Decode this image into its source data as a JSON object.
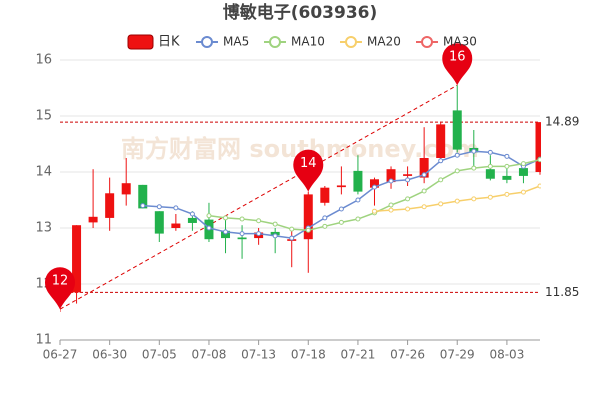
{
  "chart_data": {
    "type": "candlestick",
    "title": "博敏电子(603936)",
    "watermark": "南方财富网 southmoney.com",
    "categories": [
      "06-27",
      null,
      null,
      "06-30",
      null,
      null,
      "07-05",
      null,
      null,
      "07-08",
      null,
      null,
      "07-13",
      null,
      null,
      "07-18",
      null,
      null,
      "07-21",
      null,
      null,
      "07-26",
      null,
      null,
      "07-29",
      null,
      null,
      "08-03",
      null,
      null
    ],
    "candle_name": "日K",
    "up_color": "#ee1111",
    "down_color": "#22b14c",
    "open": [
      11.85,
      11.85,
      13.1,
      13.18,
      13.6,
      13.77,
      13.3,
      13.0,
      13.18,
      13.15,
      12.95,
      12.83,
      12.82,
      12.93,
      12.77,
      12.8,
      13.45,
      13.73,
      14.02,
      13.72,
      13.82,
      13.93,
      13.9,
      14.25,
      15.1,
      14.43,
      14.05,
      13.93,
      14.07,
      14.0
    ],
    "close": [
      12.0,
      13.05,
      13.2,
      13.62,
      13.8,
      13.35,
      12.9,
      13.08,
      13.09,
      12.8,
      12.82,
      12.8,
      12.92,
      12.87,
      12.8,
      13.6,
      13.72,
      13.76,
      13.65,
      13.87,
      14.05,
      13.96,
      14.25,
      14.85,
      14.4,
      14.35,
      13.88,
      13.86,
      13.93,
      14.89
    ],
    "high": [
      12.1,
      13.05,
      14.05,
      13.9,
      14.25,
      13.77,
      13.3,
      13.25,
      13.3,
      13.45,
      13.2,
      13.05,
      13.0,
      13.0,
      12.95,
      13.65,
      13.75,
      14.1,
      14.3,
      13.9,
      14.1,
      14.1,
      14.8,
      14.9,
      15.55,
      14.75,
      14.3,
      14.1,
      14.1,
      14.89
    ],
    "low": [
      11.5,
      11.65,
      13.0,
      12.95,
      13.4,
      13.35,
      12.75,
      12.95,
      12.95,
      12.75,
      12.55,
      12.45,
      12.7,
      12.55,
      12.3,
      12.2,
      13.4,
      13.6,
      13.6,
      13.4,
      13.7,
      13.75,
      13.8,
      14.2,
      14.35,
      14.1,
      13.85,
      13.8,
      13.8,
      13.95
    ],
    "series": [
      {
        "name": "MA5",
        "color": "#6b8bd0",
        "values": [
          null,
          null,
          null,
          null,
          null,
          13.4,
          13.38,
          13.36,
          13.25,
          13.0,
          12.93,
          12.9,
          12.9,
          12.86,
          12.82,
          13.0,
          13.18,
          13.34,
          13.5,
          13.73,
          13.84,
          13.86,
          13.95,
          14.2,
          14.3,
          14.37,
          14.35,
          14.28,
          14.1,
          14.23
        ]
      },
      {
        "name": "MA10",
        "color": "#9fd37f",
        "values": [
          null,
          null,
          null,
          null,
          null,
          null,
          null,
          null,
          null,
          13.22,
          13.18,
          13.16,
          13.13,
          13.07,
          12.98,
          12.96,
          13.03,
          13.1,
          13.16,
          13.27,
          13.41,
          13.52,
          13.66,
          13.86,
          14.02,
          14.07,
          14.1,
          14.1,
          14.15,
          14.22
        ]
      },
      {
        "name": "MA20",
        "color": "#f7cf6b",
        "values": [
          null,
          null,
          null,
          null,
          null,
          null,
          null,
          null,
          null,
          null,
          null,
          null,
          null,
          null,
          null,
          null,
          null,
          null,
          null,
          13.3,
          13.32,
          13.34,
          13.38,
          13.43,
          13.48,
          13.52,
          13.55,
          13.6,
          13.64,
          13.75
        ]
      },
      {
        "name": "MA30",
        "color": "#ee6666",
        "values": [
          null,
          null,
          null,
          null,
          null,
          null,
          null,
          null,
          null,
          null,
          null,
          null,
          null,
          null,
          null,
          null,
          null,
          null,
          null,
          null,
          null,
          null,
          null,
          null,
          null,
          null,
          null,
          null,
          null,
          null
        ]
      }
    ],
    "hlines": [
      14.89,
      11.85
    ],
    "pins": [
      {
        "text": "16",
        "x": "07-29",
        "value": 15.55
      },
      {
        "text": "14",
        "x": "07-18",
        "value": 13.65
      },
      {
        "text": "12",
        "x": "06-27",
        "value": 11.55
      }
    ],
    "ylim": [
      11,
      16
    ],
    "yticks": [
      11,
      12,
      13,
      14,
      15,
      16
    ],
    "grid": true
  }
}
